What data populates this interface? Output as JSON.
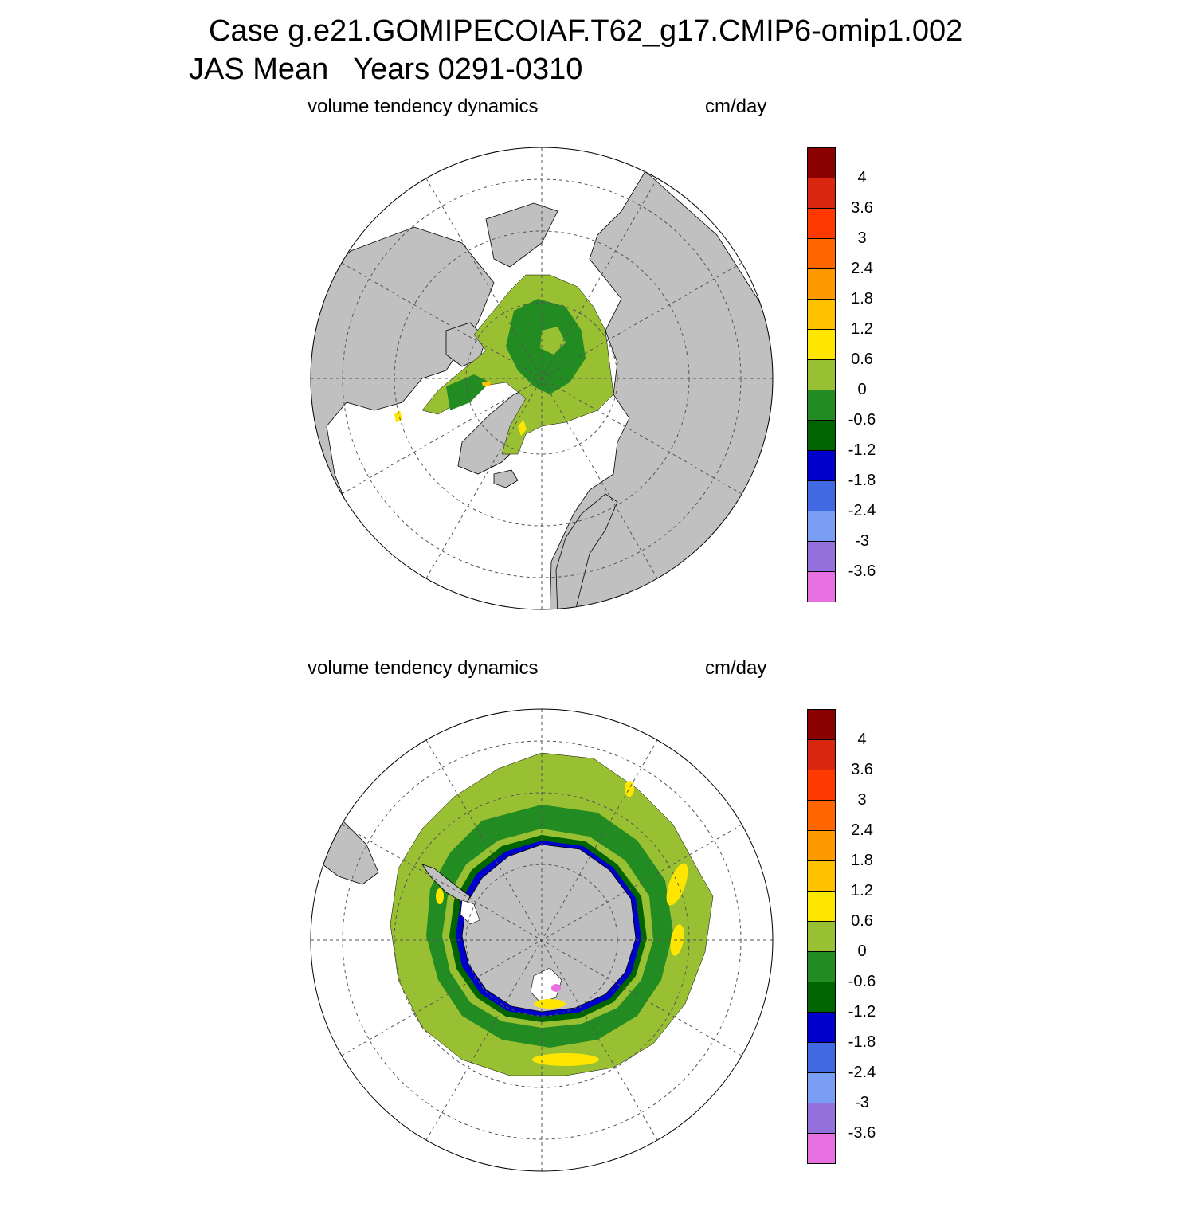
{
  "title": {
    "line1": "Case g.e21.GOMIPECOIAF.T62_g17.CMIP6-omip1.002",
    "line2": "JAS Mean   Years 0291-0310"
  },
  "panels": [
    {
      "id": "north",
      "left_title": "volume tendency dynamics",
      "right_title": "cm/day",
      "hemisphere": "north"
    },
    {
      "id": "south",
      "left_title": "volume tendency dynamics",
      "right_title": "cm/day",
      "hemisphere": "south"
    }
  ],
  "colorbar": {
    "labels": [
      "4",
      "3.6",
      "3",
      "2.4",
      "1.8",
      "1.2",
      "0.6",
      "0",
      "-0.6",
      "-1.2",
      "-1.8",
      "-2.4",
      "-3",
      "-3.6"
    ],
    "colors": [
      "#8b0000",
      "#d9260f",
      "#ff3a00",
      "#ff6600",
      "#ff9900",
      "#ffc000",
      "#ffe600",
      "#99c033",
      "#228b22",
      "#006400",
      "#0000cd",
      "#4169e1",
      "#7b9ef5",
      "#9370db",
      "#e770e0"
    ]
  },
  "colors": {
    "land": "#c0c0c0",
    "ocean": "#ffffff",
    "grid": "#555555"
  }
}
